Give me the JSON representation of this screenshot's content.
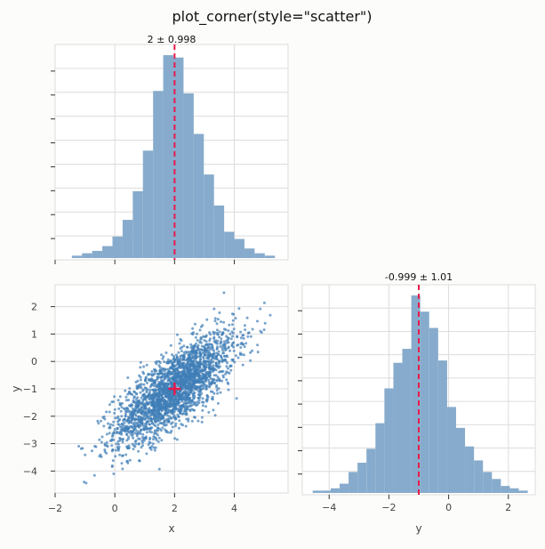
{
  "figure": {
    "title": "plot_corner(style=\"scatter\")"
  },
  "colors": {
    "background": "#fcfcfa",
    "panel": "#ffffff",
    "grid": "#dcdcdc",
    "hist_fill": "#87abcc",
    "scatter": "#3f7db6",
    "marker": "#e8194a",
    "text": "#444444"
  },
  "chart_data": [
    {
      "panel": "x-marginal",
      "type": "bar",
      "title": "2 ± 0.998",
      "xlim": [
        -2,
        5.8
      ],
      "marker_x": 2,
      "x_ticks": [
        -2,
        0,
        2,
        4
      ],
      "tick_labels_shown": false,
      "bins": [
        {
          "x0": -1.44,
          "x1": -1.1,
          "h": 1
        },
        {
          "x0": -1.1,
          "x1": -0.76,
          "h": 2
        },
        {
          "x0": -0.76,
          "x1": -0.42,
          "h": 3
        },
        {
          "x0": -0.42,
          "x1": -0.08,
          "h": 5
        },
        {
          "x0": -0.08,
          "x1": 0.26,
          "h": 9
        },
        {
          "x0": 0.26,
          "x1": 0.6,
          "h": 16
        },
        {
          "x0": 0.6,
          "x1": 0.94,
          "h": 28
        },
        {
          "x0": 0.94,
          "x1": 1.28,
          "h": 45
        },
        {
          "x0": 1.28,
          "x1": 1.62,
          "h": 70
        },
        {
          "x0": 1.62,
          "x1": 1.96,
          "h": 85
        },
        {
          "x0": 1.96,
          "x1": 2.3,
          "h": 84
        },
        {
          "x0": 2.3,
          "x1": 2.64,
          "h": 69
        },
        {
          "x0": 2.64,
          "x1": 2.98,
          "h": 52
        },
        {
          "x0": 2.98,
          "x1": 3.32,
          "h": 35
        },
        {
          "x0": 3.32,
          "x1": 3.66,
          "h": 22
        },
        {
          "x0": 3.66,
          "x1": 4.0,
          "h": 11
        },
        {
          "x0": 4.0,
          "x1": 4.34,
          "h": 8
        },
        {
          "x0": 4.34,
          "x1": 4.68,
          "h": 4
        },
        {
          "x0": 4.68,
          "x1": 5.02,
          "h": 2
        },
        {
          "x0": 5.02,
          "x1": 5.36,
          "h": 1
        }
      ]
    },
    {
      "panel": "joint",
      "type": "scatter",
      "xlabel": "x",
      "ylabel": "y",
      "xlim": [
        -2,
        5.8
      ],
      "ylim": [
        -4.8,
        2.8
      ],
      "x_ticks": [
        -2,
        0,
        2,
        4
      ],
      "y_ticks": [
        2,
        1,
        0,
        -1,
        -2,
        -3,
        -4
      ],
      "marker": {
        "x": 2,
        "y": -1
      },
      "n_points": 2500,
      "correlation": 0.75
    },
    {
      "panel": "y-marginal",
      "type": "bar",
      "title": "-0.999 ± 1.01",
      "xlabel": "y",
      "xlim": [
        -4.9,
        2.9
      ],
      "marker_x": -0.999,
      "x_ticks": [
        -4,
        -2,
        0,
        2
      ],
      "bins": [
        {
          "x0": -4.55,
          "x1": -4.25,
          "h": 1
        },
        {
          "x0": -4.25,
          "x1": -3.95,
          "h": 1
        },
        {
          "x0": -3.95,
          "x1": -3.65,
          "h": 2
        },
        {
          "x0": -3.65,
          "x1": -3.35,
          "h": 4
        },
        {
          "x0": -3.35,
          "x1": -3.05,
          "h": 9
        },
        {
          "x0": -3.05,
          "x1": -2.75,
          "h": 13
        },
        {
          "x0": -2.75,
          "x1": -2.45,
          "h": 19
        },
        {
          "x0": -2.45,
          "x1": -2.15,
          "h": 30
        },
        {
          "x0": -2.15,
          "x1": -1.85,
          "h": 45
        },
        {
          "x0": -1.85,
          "x1": -1.55,
          "h": 56
        },
        {
          "x0": -1.55,
          "x1": -1.25,
          "h": 62
        },
        {
          "x0": -1.25,
          "x1": -0.95,
          "h": 85
        },
        {
          "x0": -0.95,
          "x1": -0.65,
          "h": 78
        },
        {
          "x0": -0.65,
          "x1": -0.35,
          "h": 71
        },
        {
          "x0": -0.35,
          "x1": -0.05,
          "h": 57
        },
        {
          "x0": -0.05,
          "x1": 0.25,
          "h": 37
        },
        {
          "x0": 0.25,
          "x1": 0.55,
          "h": 28
        },
        {
          "x0": 0.55,
          "x1": 0.85,
          "h": 20
        },
        {
          "x0": 0.85,
          "x1": 1.15,
          "h": 14
        },
        {
          "x0": 1.15,
          "x1": 1.45,
          "h": 9
        },
        {
          "x0": 1.45,
          "x1": 1.75,
          "h": 6
        },
        {
          "x0": 1.75,
          "x1": 2.05,
          "h": 3
        },
        {
          "x0": 2.05,
          "x1": 2.35,
          "h": 2
        },
        {
          "x0": 2.35,
          "x1": 2.65,
          "h": 1
        }
      ]
    }
  ]
}
